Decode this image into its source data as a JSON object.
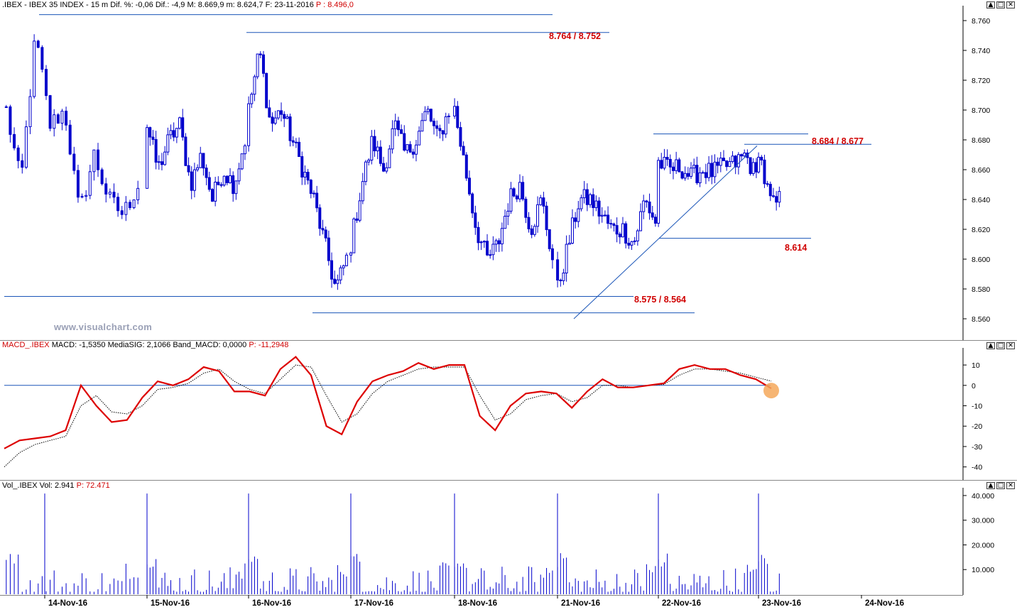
{
  "colors": {
    "candle": "#0000cc",
    "line": "#1a55b8",
    "annotation": "#d00000",
    "macd": "#dd0000",
    "signal": "#000000",
    "volume": "#0000cc",
    "highlight": "#f4a85a"
  },
  "price_pane": {
    "header": {
      "symbol": ".IBEX - IBEX 35 INDEX - 15 m",
      "dif_pct": "Dif. %: -0,06",
      "dif": "Dif.: -4,9",
      "max": "M: 8.669,9",
      "min": "m: 8.624,7",
      "date": "F: 23-11-2016",
      "last": "P : 8.496,0"
    },
    "watermark": "www.visualchart.com",
    "annotations": [
      "8.764 / 8.752",
      "8.684 / 8.677",
      "8.614",
      "8.575 / 8.564"
    ],
    "yticks": [
      "8.760",
      "8.740",
      "8.720",
      "8.700",
      "8.680",
      "8.660",
      "8.640",
      "8.620",
      "8.600",
      "8.580",
      "8.560"
    ]
  },
  "macd_pane": {
    "header": {
      "title": "MACD_.IBEX",
      "macd": "MACD: -1,5350",
      "signal": "MediaSIG: 2,1066",
      "band": "Band_MACD: 0,0000",
      "last": "P: -11,2948"
    },
    "yticks": [
      "10",
      "0",
      "-10",
      "-20",
      "-30",
      "-40"
    ]
  },
  "volume_pane": {
    "header": {
      "title": "Vol_.IBEX",
      "vol": "Vol: 2.941",
      "last": "P: 72.471"
    },
    "yticks": [
      "40.000",
      "30.000",
      "20.000",
      "10.000"
    ]
  },
  "xaxis": {
    "labels": [
      "14-Nov-16",
      "15-Nov-16",
      "16-Nov-16",
      "17-Nov-16",
      "18-Nov-16",
      "21-Nov-16",
      "22-Nov-16",
      "23-Nov-16",
      "24-Nov-16"
    ]
  },
  "window_buttons": [
    "▲",
    "□",
    "✕"
  ],
  "chart_data": [
    {
      "type": "candlestick",
      "title": ".IBEX - IBEX 35 INDEX - 15 m",
      "ylim": [
        8550,
        8770
      ],
      "days": [
        "14-Nov-16",
        "15-Nov-16",
        "16-Nov-16",
        "17-Nov-16",
        "18-Nov-16",
        "21-Nov-16",
        "22-Nov-16",
        "23-Nov-16"
      ],
      "day_anchors_close": [
        [
          8700,
          8650,
          8750,
          8690,
          8700,
          8630,
          8670,
          8640,
          8630,
          8650
        ],
        [
          8690,
          8660,
          8680,
          8690,
          8650,
          8670,
          8640,
          8660,
          8650,
          8680
        ],
        [
          8700,
          8740,
          8690,
          8700,
          8680,
          8660,
          8640,
          8610,
          8580,
          8600
        ],
        [
          8610,
          8650,
          8680,
          8660,
          8690,
          8670,
          8680,
          8700,
          8680,
          8700
        ],
        [
          8700,
          8660,
          8620,
          8600,
          8610,
          8640,
          8650,
          8620,
          8640,
          8600
        ],
        [
          8580,
          8610,
          8640,
          8640,
          8630,
          8620,
          8620,
          8610,
          8640,
          8625
        ],
        [
          8665,
          8660,
          8662,
          8655,
          8660,
          8658,
          8662,
          8664,
          8670,
          8655
        ],
        [
          8675,
          8650,
          8635,
          8640
        ]
      ],
      "levels": [
        {
          "label": "8.764 / 8.752",
          "from": "14-Nov-16",
          "to": "18-Nov-16",
          "values": [
            8764,
            8752
          ]
        },
        {
          "label": "8.684 / 8.677",
          "from": "22-Nov-16",
          "to": "23-Nov-16",
          "values": [
            8684,
            8677
          ]
        },
        {
          "label": "8.614",
          "from": "22-Nov-16",
          "to": "23-Nov-16",
          "values": [
            8614
          ]
        },
        {
          "label": "8.575 / 8.564",
          "from": "14-Nov-16",
          "to": "22-Nov-16",
          "values": [
            8575,
            8564
          ]
        }
      ],
      "trendline": {
        "from": [
          8560,
          "21-Nov-16"
        ],
        "to": [
          8676,
          "23-Nov-16"
        ]
      }
    },
    {
      "type": "line",
      "title": "MACD_.IBEX",
      "ylim": [
        -45,
        17
      ],
      "series": [
        {
          "name": "MACD",
          "values": [
            -31,
            -27,
            -26,
            -25,
            -22,
            0,
            -10,
            -18,
            -17,
            -6,
            2,
            0,
            3,
            9,
            7,
            -3,
            -3,
            -5,
            8,
            14,
            5,
            -20,
            -24,
            -8,
            2,
            5,
            7,
            11,
            8,
            10,
            10,
            -15,
            -22,
            -10,
            -4,
            -3,
            -4,
            -11,
            -3,
            3,
            -1,
            -1,
            0,
            1,
            8,
            10,
            8,
            8,
            5,
            3,
            -1.5
          ]
        },
        {
          "name": "MediaSIG",
          "values": [
            -40,
            -33,
            -29,
            -27,
            -25,
            -10,
            -5,
            -13,
            -14,
            -10,
            -2,
            -1,
            1,
            6,
            8,
            2,
            -2,
            -4,
            3,
            10,
            9,
            -5,
            -18,
            -14,
            -4,
            2,
            5,
            8,
            9,
            9,
            9,
            -5,
            -17,
            -14,
            -7,
            -5,
            -4,
            -8,
            -6,
            0,
            0,
            -1,
            0,
            0.5,
            5,
            8,
            8,
            7,
            6,
            4,
            2.1
          ]
        },
        {
          "name": "Band_MACD",
          "values": [
            0
          ]
        }
      ],
      "last_marker": -1.5
    },
    {
      "type": "bar",
      "title": "Vol_.IBEX",
      "ylim": [
        0,
        42000
      ],
      "day_opening_spikes": [
        40800,
        40800,
        40800,
        40800,
        40800,
        40800,
        40800,
        40800
      ],
      "typical_range": [
        1000,
        12000
      ]
    }
  ]
}
